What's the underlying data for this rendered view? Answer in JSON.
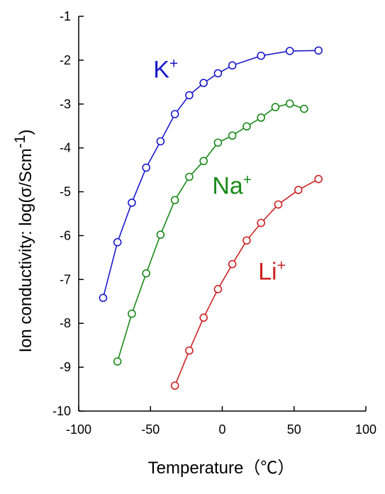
{
  "chart_data": {
    "type": "line",
    "title": "",
    "xlabel": "Temperature（℃）",
    "ylabel_main": "Ion conductivity: log(σ/Scm",
    "ylabel_sup": "-1",
    "ylabel_end": ")",
    "xlim": [
      -100,
      100
    ],
    "ylim": [
      -10,
      -1
    ],
    "xticks": [
      -100,
      -50,
      0,
      50,
      100
    ],
    "yticks": [
      -1,
      -2,
      -3,
      -4,
      -5,
      -6,
      -7,
      -8,
      -9,
      -10
    ],
    "grid": false,
    "legend": "inline labels",
    "series": [
      {
        "name": "K",
        "name_sup": "+",
        "color": "#1a1acc",
        "x": [
          -83,
          -73,
          -63,
          -53,
          -43,
          -33,
          -23,
          -13,
          -3,
          7,
          27,
          47,
          67
        ],
        "y": [
          -7.42,
          -6.15,
          -5.25,
          -4.45,
          -3.85,
          -3.23,
          -2.8,
          -2.52,
          -2.3,
          -2.12,
          -1.9,
          -1.79,
          -1.78
        ]
      },
      {
        "name": "Na",
        "name_sup": "+",
        "color": "#1a8a1a",
        "x": [
          -73,
          -63,
          -53,
          -43,
          -33,
          -23,
          -13,
          -3,
          7,
          17,
          27,
          37,
          47,
          57
        ],
        "y": [
          -8.87,
          -7.78,
          -6.86,
          -5.98,
          -5.19,
          -4.66,
          -4.3,
          -3.88,
          -3.72,
          -3.51,
          -3.31,
          -3.07,
          -2.99,
          -3.11
        ]
      },
      {
        "name": "Li",
        "name_sup": "+",
        "color": "#cc2222",
        "x": [
          -33,
          -23,
          -13,
          -3,
          7,
          17,
          27,
          39,
          53,
          67
        ],
        "y": [
          -9.42,
          -8.62,
          -7.87,
          -7.22,
          -6.65,
          -6.11,
          -5.71,
          -5.29,
          -4.96,
          -4.71
        ]
      }
    ]
  }
}
